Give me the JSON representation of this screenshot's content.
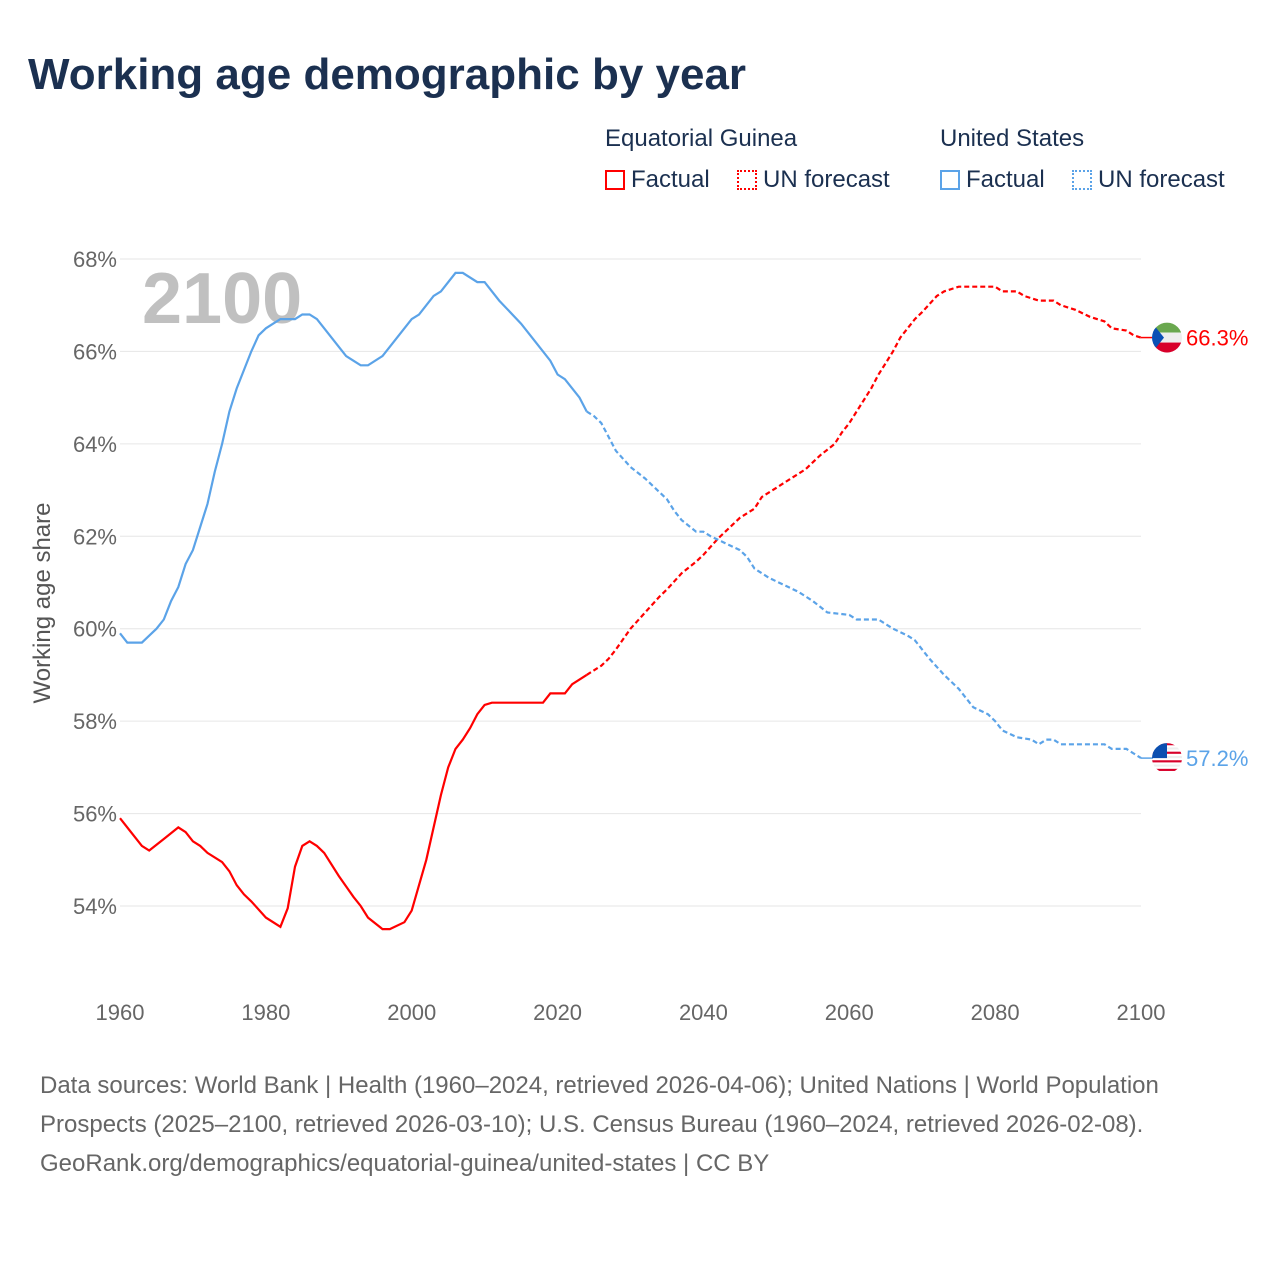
{
  "title": "Working age demographic by year",
  "legend": {
    "groups": [
      {
        "name": "Equatorial Guinea",
        "factual": "Factual",
        "forecast": "UN forecast",
        "color": "#ff0000"
      },
      {
        "name": "United States",
        "factual": "Factual",
        "forecast": "UN forecast",
        "color": "#5ba3e8"
      }
    ]
  },
  "chart_data": {
    "type": "line",
    "title": "Working age demographic by year",
    "ylabel": "Working age share",
    "xlabel": "",
    "xlim": [
      1960,
      2100
    ],
    "ylim": [
      54,
      68
    ],
    "x_ticks": [
      "1960",
      "1980",
      "2000",
      "2020",
      "2040",
      "2060",
      "2080",
      "2100"
    ],
    "y_ticks": [
      "54%",
      "56%",
      "58%",
      "60%",
      "62%",
      "64%",
      "66%",
      "68%"
    ],
    "year_watermark": "2100",
    "forecast_start": 2024,
    "series": [
      {
        "name": "Equatorial Guinea",
        "color": "#ff0000",
        "end_label": "66.3%",
        "points": [
          [
            1960,
            55.9
          ],
          [
            1963,
            55.3
          ],
          [
            1964,
            55.2
          ],
          [
            1966,
            55.45
          ],
          [
            1968,
            55.7
          ],
          [
            1969,
            55.6
          ],
          [
            1970,
            55.4
          ],
          [
            1971,
            55.3
          ],
          [
            1972,
            55.15
          ],
          [
            1974,
            54.95
          ],
          [
            1975,
            54.75
          ],
          [
            1976,
            54.45
          ],
          [
            1977,
            54.25
          ],
          [
            1978,
            54.1
          ],
          [
            1980,
            53.75
          ],
          [
            1982,
            53.55
          ],
          [
            1983,
            53.95
          ],
          [
            1984,
            54.85
          ],
          [
            1985,
            55.3
          ],
          [
            1986,
            55.4
          ],
          [
            1987,
            55.3
          ],
          [
            1988,
            55.15
          ],
          [
            1990,
            54.65
          ],
          [
            1992,
            54.2
          ],
          [
            1993,
            54.0
          ],
          [
            1994,
            53.75
          ],
          [
            1996,
            53.5
          ],
          [
            1997,
            53.5
          ],
          [
            1999,
            53.65
          ],
          [
            2000,
            53.9
          ],
          [
            2002,
            55.0
          ],
          [
            2004,
            56.4
          ],
          [
            2005,
            57.0
          ],
          [
            2006,
            57.4
          ],
          [
            2007,
            57.6
          ],
          [
            2008,
            57.85
          ],
          [
            2009,
            58.15
          ],
          [
            2010,
            58.35
          ],
          [
            2011,
            58.4
          ],
          [
            2018,
            58.4
          ],
          [
            2019,
            58.6
          ],
          [
            2021,
            58.6
          ],
          [
            2022,
            58.8
          ],
          [
            2024,
            59.0
          ],
          [
            2025,
            59.1
          ],
          [
            2026,
            59.2
          ],
          [
            2027,
            59.35
          ],
          [
            2028,
            59.55
          ],
          [
            2030,
            60.0
          ],
          [
            2032,
            60.35
          ],
          [
            2034,
            60.7
          ],
          [
            2035,
            60.85
          ],
          [
            2037,
            61.2
          ],
          [
            2039,
            61.45
          ],
          [
            2040,
            61.6
          ],
          [
            2042,
            61.95
          ],
          [
            2044,
            62.25
          ],
          [
            2045,
            62.4
          ],
          [
            2047,
            62.6
          ],
          [
            2048,
            62.85
          ],
          [
            2050,
            63.05
          ],
          [
            2052,
            63.25
          ],
          [
            2054,
            63.45
          ],
          [
            2055,
            63.6
          ],
          [
            2056,
            63.75
          ],
          [
            2058,
            64.0
          ],
          [
            2059,
            64.25
          ],
          [
            2060,
            64.45
          ],
          [
            2061,
            64.7
          ],
          [
            2062,
            64.95
          ],
          [
            2063,
            65.2
          ],
          [
            2064,
            65.5
          ],
          [
            2065,
            65.75
          ],
          [
            2066,
            66.0
          ],
          [
            2067,
            66.3
          ],
          [
            2068,
            66.5
          ],
          [
            2069,
            66.7
          ],
          [
            2070,
            66.85
          ],
          [
            2072,
            67.2
          ],
          [
            2073,
            67.3
          ],
          [
            2075,
            67.4
          ],
          [
            2080,
            67.4
          ],
          [
            2081,
            67.3
          ],
          [
            2083,
            67.3
          ],
          [
            2084,
            67.2
          ],
          [
            2086,
            67.1
          ],
          [
            2088,
            67.1
          ],
          [
            2089,
            67.0
          ],
          [
            2091,
            66.9
          ],
          [
            2093,
            66.75
          ],
          [
            2095,
            66.65
          ],
          [
            2096,
            66.5
          ],
          [
            2098,
            66.45
          ],
          [
            2099,
            66.35
          ],
          [
            2100,
            66.3
          ]
        ]
      },
      {
        "name": "United States",
        "color": "#5ba3e8",
        "end_label": "57.2%",
        "points": [
          [
            1960,
            59.9
          ],
          [
            1961,
            59.7
          ],
          [
            1963,
            59.7
          ],
          [
            1965,
            60.0
          ],
          [
            1966,
            60.2
          ],
          [
            1967,
            60.6
          ],
          [
            1968,
            60.9
          ],
          [
            1969,
            61.4
          ],
          [
            1970,
            61.7
          ],
          [
            1971,
            62.2
          ],
          [
            1972,
            62.7
          ],
          [
            1973,
            63.4
          ],
          [
            1974,
            64.0
          ],
          [
            1975,
            64.7
          ],
          [
            1976,
            65.2
          ],
          [
            1977,
            65.6
          ],
          [
            1978,
            66.0
          ],
          [
            1979,
            66.35
          ],
          [
            1980,
            66.5
          ],
          [
            1981,
            66.6
          ],
          [
            1982,
            66.7
          ],
          [
            1984,
            66.7
          ],
          [
            1985,
            66.8
          ],
          [
            1986,
            66.8
          ],
          [
            1987,
            66.7
          ],
          [
            1988,
            66.5
          ],
          [
            1990,
            66.1
          ],
          [
            1991,
            65.9
          ],
          [
            1992,
            65.8
          ],
          [
            1993,
            65.7
          ],
          [
            1994,
            65.7
          ],
          [
            1996,
            65.9
          ],
          [
            1998,
            66.3
          ],
          [
            2000,
            66.7
          ],
          [
            2001,
            66.8
          ],
          [
            2003,
            67.2
          ],
          [
            2004,
            67.3
          ],
          [
            2006,
            67.7
          ],
          [
            2007,
            67.7
          ],
          [
            2009,
            67.5
          ],
          [
            2010,
            67.5
          ],
          [
            2012,
            67.1
          ],
          [
            2015,
            66.6
          ],
          [
            2017,
            66.2
          ],
          [
            2019,
            65.8
          ],
          [
            2020,
            65.5
          ],
          [
            2021,
            65.4
          ],
          [
            2023,
            65.0
          ],
          [
            2024,
            64.7
          ],
          [
            2025,
            64.6
          ],
          [
            2026,
            64.45
          ],
          [
            2027,
            64.15
          ],
          [
            2028,
            63.85
          ],
          [
            2030,
            63.5
          ],
          [
            2032,
            63.25
          ],
          [
            2034,
            62.95
          ],
          [
            2035,
            62.8
          ],
          [
            2036,
            62.55
          ],
          [
            2037,
            62.35
          ],
          [
            2039,
            62.1
          ],
          [
            2040,
            62.1
          ],
          [
            2041,
            62.0
          ],
          [
            2043,
            61.85
          ],
          [
            2045,
            61.7
          ],
          [
            2046,
            61.55
          ],
          [
            2047,
            61.3
          ],
          [
            2049,
            61.1
          ],
          [
            2051,
            60.95
          ],
          [
            2053,
            60.8
          ],
          [
            2055,
            60.6
          ],
          [
            2057,
            60.35
          ],
          [
            2060,
            60.3
          ],
          [
            2061,
            60.2
          ],
          [
            2064,
            60.2
          ],
          [
            2066,
            60.0
          ],
          [
            2068,
            59.85
          ],
          [
            2069,
            59.75
          ],
          [
            2071,
            59.35
          ],
          [
            2073,
            59.0
          ],
          [
            2075,
            58.7
          ],
          [
            2077,
            58.3
          ],
          [
            2079,
            58.15
          ],
          [
            2080,
            58.0
          ],
          [
            2081,
            57.8
          ],
          [
            2083,
            57.65
          ],
          [
            2085,
            57.6
          ],
          [
            2086,
            57.5
          ],
          [
            2087,
            57.6
          ],
          [
            2088,
            57.6
          ],
          [
            2089,
            57.5
          ],
          [
            2095,
            57.5
          ],
          [
            2096,
            57.4
          ],
          [
            2098,
            57.4
          ],
          [
            2099,
            57.3
          ],
          [
            2100,
            57.2
          ]
        ]
      }
    ]
  },
  "footer": {
    "sources": "Data sources: World Bank | Health (1960–2024, retrieved 2026-04-06); United Nations | World Population Prospects (2025–2100, retrieved 2026-03-10); U.S. Census Bureau (1960–2024, retrieved 2026-02-08).",
    "link": "GeoRank.org/demographics/equatorial-guinea/united-states | CC BY"
  }
}
